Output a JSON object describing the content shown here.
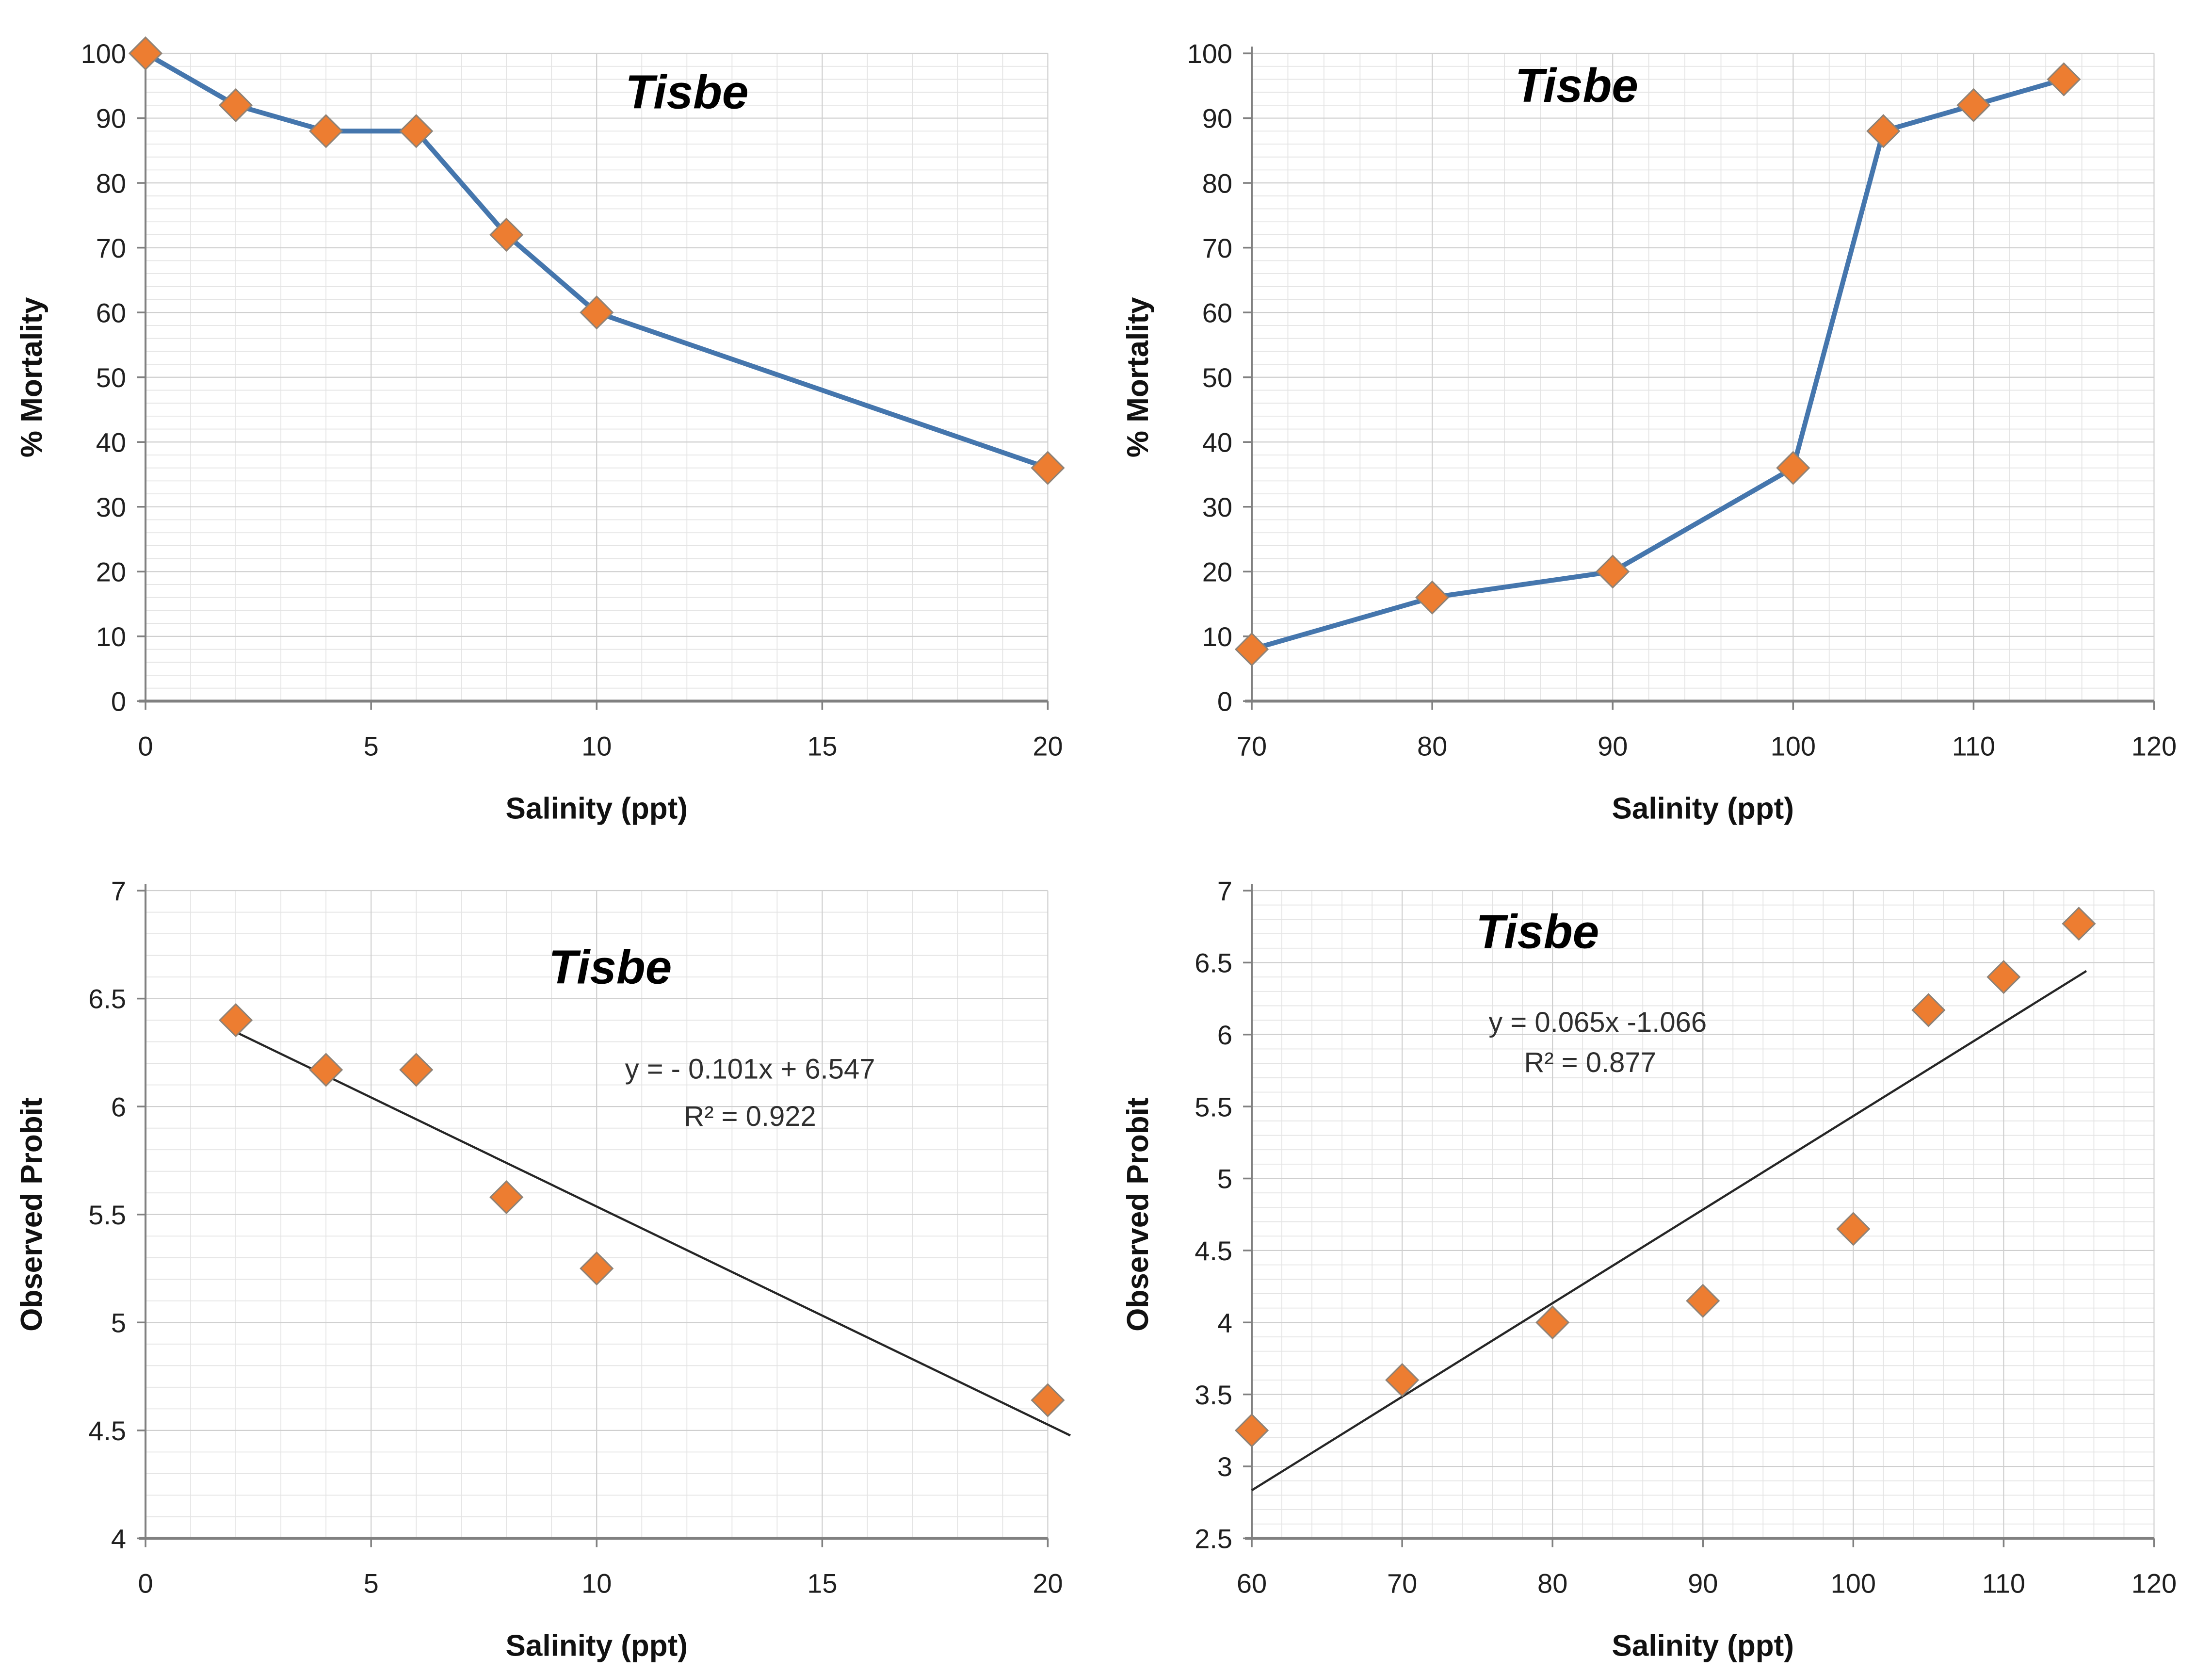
{
  "page": {
    "background": "#ffffff",
    "description_title": "Tisbe"
  },
  "palette": {
    "series_line": "#4576ad",
    "marker_fill": "#ed7d31",
    "marker_stroke": "#8e8276",
    "trend_line": "#262626",
    "axis_line": "#808080",
    "grid_minor": "#e4e4e4",
    "grid_major": "#cfcfcf",
    "tick_text": "#1f1f1f",
    "title_text": "#000000",
    "equation_text": "#2f2f2f"
  },
  "chart_data": [
    {
      "id": "mortality-low-salinity",
      "type": "line",
      "title": "Tisbe",
      "xlabel": "Salinity (ppt)",
      "ylabel": "% Mortality",
      "xlim": [
        0,
        20
      ],
      "ylim": [
        0,
        100
      ],
      "x_ticks": [
        0,
        5,
        10,
        15,
        20
      ],
      "x_tick_labels": [
        "0",
        "5",
        "10",
        "15",
        "20"
      ],
      "y_ticks": [
        0,
        10,
        20,
        30,
        40,
        50,
        60,
        70,
        80,
        90,
        100
      ],
      "y_tick_labels": [
        "0",
        "10",
        "20",
        "30",
        "40",
        "50",
        "60",
        "70",
        "80",
        "90",
        "100"
      ],
      "x_minor_step": 1,
      "y_minor_step": 2,
      "grid": true,
      "legend": "none",
      "marker": "diamond",
      "points": [
        [
          0,
          100
        ],
        [
          2,
          92
        ],
        [
          4,
          88
        ],
        [
          6,
          88
        ],
        [
          8,
          72
        ],
        [
          10,
          60
        ],
        [
          20,
          36
        ]
      ],
      "title_pos": [
        12,
        91.5
      ]
    },
    {
      "id": "mortality-high-salinity",
      "type": "line",
      "title": "Tisbe",
      "xlabel": "Salinity (ppt)",
      "ylabel": "% Mortality",
      "xlim": [
        70,
        120
      ],
      "ylim": [
        0,
        100
      ],
      "x_ticks": [
        70,
        80,
        90,
        100,
        110,
        120
      ],
      "x_tick_labels": [
        "70",
        "80",
        "90",
        "100",
        "110",
        "120"
      ],
      "y_ticks": [
        0,
        10,
        20,
        30,
        40,
        50,
        60,
        70,
        80,
        90,
        100
      ],
      "y_tick_labels": [
        "0",
        "10",
        "20",
        "30",
        "40",
        "50",
        "60",
        "70",
        "80",
        "90",
        "100"
      ],
      "x_minor_step": 2,
      "y_minor_step": 2,
      "grid": true,
      "legend": "none",
      "marker": "diamond",
      "points": [
        [
          70,
          8
        ],
        [
          80,
          16
        ],
        [
          90,
          20
        ],
        [
          100,
          36
        ],
        [
          105,
          88
        ],
        [
          110,
          92
        ],
        [
          115,
          96
        ]
      ],
      "title_pos": [
        88,
        92.5
      ]
    },
    {
      "id": "probit-low-salinity",
      "type": "scatter",
      "title": "Tisbe",
      "xlabel": "Salinity (ppt)",
      "ylabel": "Observed Probit",
      "xlim": [
        0,
        20
      ],
      "ylim": [
        4,
        7
      ],
      "x_ticks": [
        0,
        5,
        10,
        15,
        20
      ],
      "x_tick_labels": [
        "0",
        "5",
        "10",
        "15",
        "20"
      ],
      "y_ticks": [
        4,
        4.5,
        5,
        5.5,
        6,
        6.5,
        7
      ],
      "y_tick_labels": [
        "4",
        "4.5",
        "5",
        "5.5",
        "6",
        "6.5",
        "7"
      ],
      "x_minor_step": 1,
      "y_minor_step": 0.1,
      "grid": true,
      "legend": "none",
      "marker": "diamond",
      "points": [
        [
          2,
          6.4
        ],
        [
          4,
          6.17
        ],
        [
          6,
          6.17
        ],
        [
          8,
          5.58
        ],
        [
          10,
          5.25
        ],
        [
          20,
          4.64
        ]
      ],
      "trendline": {
        "slope": -0.101,
        "intercept": 6.547,
        "x_start": 2,
        "x_end": 20.5
      },
      "equation": "y = - 0.101x + 6.547",
      "r2": "R² = 0.922",
      "equation_pos": [
        13.4,
        6.13
      ],
      "r2_pos": [
        13.4,
        5.91
      ],
      "title_pos": [
        10.3,
        6.57
      ]
    },
    {
      "id": "probit-high-salinity",
      "type": "scatter",
      "title": "Tisbe",
      "xlabel": "Salinity (ppt)",
      "ylabel": "Observed Probit",
      "xlim": [
        60,
        120
      ],
      "ylim": [
        2.5,
        7
      ],
      "x_ticks": [
        60,
        70,
        80,
        90,
        100,
        110,
        120
      ],
      "x_tick_labels": [
        "60",
        "70",
        "80",
        "90",
        "100",
        "110",
        "120"
      ],
      "y_ticks": [
        2.5,
        3,
        3.5,
        4,
        4.5,
        5,
        5.5,
        6,
        6.5,
        7
      ],
      "y_tick_labels": [
        "2.5",
        "3",
        "3.5",
        "4",
        "4.5",
        "5",
        "5.5",
        "6",
        "6.5",
        "7"
      ],
      "x_minor_step": 2,
      "y_minor_step": 0.1,
      "grid": true,
      "legend": "none",
      "marker": "diamond",
      "points": [
        [
          60,
          3.25
        ],
        [
          70,
          3.6
        ],
        [
          80,
          4.0
        ],
        [
          90,
          4.15
        ],
        [
          100,
          4.65
        ],
        [
          105,
          6.17
        ],
        [
          110,
          6.4
        ],
        [
          115,
          6.77
        ]
      ],
      "trendline": {
        "slope": 0.065,
        "intercept": -1.066,
        "x_start": 60,
        "x_end": 115.5
      },
      "equation": "y = 0.065x -1.066",
      "r2": "R² = 0.877",
      "equation_pos": [
        83,
        6.02
      ],
      "r2_pos": [
        82.5,
        5.74
      ],
      "title_pos": [
        79,
        6.6
      ]
    }
  ]
}
